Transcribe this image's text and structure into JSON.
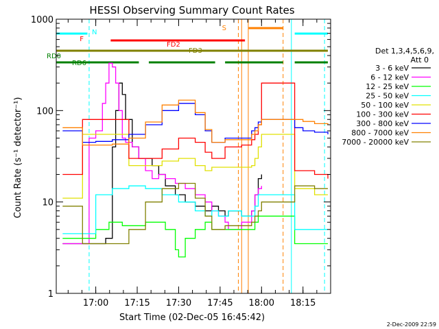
{
  "chart_data": {
    "type": "line",
    "title": "HESSI Observing Summary Count Rates",
    "xlabel": "Start Time (02-Dec-05 16:45:42)",
    "ylabel": "Count Rate (s⁻¹ detector⁻¹)",
    "yscale": "log",
    "ylim": [
      1,
      1000
    ],
    "xlim": [
      "16:45:42",
      "18:25"
    ],
    "x_ticks": [
      "17:00",
      "17:15",
      "17:30",
      "17:45",
      "18:00",
      "18:15"
    ],
    "y_ticks": [
      "1",
      "10",
      "100",
      "1000"
    ],
    "legend_header": [
      "Det 1,3,4,5,6,9,",
      "Att 0"
    ],
    "legend_position": "right",
    "footer": "2-Dec-2009 22:59",
    "series": [
      {
        "name": "3 - 6 keV",
        "color": "#000000",
        "x": [
          16.8,
          16.92,
          17.0,
          17.06,
          17.1,
          17.12,
          17.14,
          17.16,
          17.18,
          17.22,
          17.26,
          17.3,
          17.34,
          17.38,
          17.42,
          17.48,
          17.54,
          17.6,
          17.66,
          17.7,
          17.74,
          17.78,
          17.8,
          17.88,
          17.94,
          17.96,
          17.98,
          18.0
        ],
        "y": [
          3.5,
          3.5,
          3.5,
          4,
          40,
          100,
          200,
          150,
          80,
          40,
          30,
          30,
          25,
          20,
          15,
          12,
          10,
          9,
          8,
          9,
          8,
          7,
          8,
          7,
          8,
          12,
          18,
          20
        ]
      },
      {
        "name": "6 - 12 keV",
        "color": "#ff00ff",
        "x": [
          16.8,
          16.92,
          16.96,
          17.0,
          17.04,
          17.06,
          17.08,
          17.1,
          17.12,
          17.14,
          17.16,
          17.18,
          17.22,
          17.26,
          17.3,
          17.34,
          17.38,
          17.42,
          17.48,
          17.54,
          17.6,
          17.66,
          17.7,
          17.74,
          17.78,
          17.8,
          17.88,
          17.94,
          17.96,
          17.98,
          18.0
        ],
        "y": [
          3.5,
          3.5,
          50,
          60,
          120,
          200,
          330,
          300,
          200,
          100,
          50,
          45,
          40,
          30,
          22,
          18,
          20,
          18,
          16,
          14,
          12,
          10,
          8,
          7,
          6,
          5,
          6,
          8,
          12,
          14,
          15
        ]
      },
      {
        "name": "12 - 25 keV",
        "color": "#00ff00",
        "x": [
          16.8,
          16.92,
          17.0,
          17.08,
          17.12,
          17.16,
          17.22,
          17.3,
          17.36,
          17.42,
          17.48,
          17.5,
          17.54,
          17.6,
          17.66,
          17.7,
          17.74,
          17.78,
          17.8,
          17.88,
          17.94,
          17.96,
          17.98,
          18.0,
          18.2,
          18.25,
          18.32,
          18.4
        ],
        "y": [
          4,
          4,
          5,
          6,
          6,
          5.5,
          5.5,
          6,
          6,
          5,
          3,
          2.5,
          4,
          5,
          6,
          5,
          5,
          5,
          5,
          5,
          5,
          6,
          7,
          7,
          3.5,
          3.5,
          3.5,
          3.5
        ]
      },
      {
        "name": "25 - 50 keV",
        "color": "#00ffff",
        "x": [
          16.8,
          16.92,
          17.0,
          17.1,
          17.2,
          17.3,
          17.4,
          17.5,
          17.6,
          17.66,
          17.7,
          17.74,
          17.78,
          17.8,
          17.88,
          17.94,
          17.96,
          17.98,
          18.0,
          18.2,
          18.25,
          18.32,
          18.4
        ],
        "y": [
          4.5,
          4.5,
          12,
          14,
          15,
          14,
          12,
          10,
          8,
          7,
          8,
          7,
          7,
          8,
          7,
          7,
          9,
          12,
          12,
          5,
          5,
          5,
          5
        ]
      },
      {
        "name": "50 - 100 keV",
        "color": "#e0e000",
        "x": [
          16.8,
          16.92,
          17.0,
          17.1,
          17.2,
          17.3,
          17.4,
          17.5,
          17.6,
          17.66,
          17.7,
          17.78,
          17.8,
          17.88,
          17.94,
          17.96,
          17.98,
          18.0,
          18.2,
          18.25,
          18.32,
          18.4
        ],
        "y": [
          11,
          55,
          55,
          55,
          25,
          25,
          28,
          30,
          25,
          22,
          24,
          24,
          24,
          24,
          25,
          30,
          40,
          55,
          14,
          14,
          12,
          12
        ]
      },
      {
        "name": "100 - 300 keV",
        "color": "#ff0000",
        "x": [
          16.8,
          16.92,
          17.0,
          17.1,
          17.2,
          17.3,
          17.4,
          17.5,
          17.6,
          17.66,
          17.7,
          17.78,
          17.8,
          17.88,
          17.94,
          17.96,
          17.98,
          18.0,
          18.2,
          18.25,
          18.32,
          18.4
        ],
        "y": [
          20,
          80,
          80,
          80,
          30,
          30,
          38,
          50,
          45,
          35,
          30,
          40,
          40,
          42,
          48,
          55,
          70,
          200,
          22,
          22,
          20,
          18
        ]
      },
      {
        "name": "300 - 800 keV",
        "color": "#0000ff",
        "x": [
          16.8,
          16.92,
          17.0,
          17.1,
          17.2,
          17.3,
          17.4,
          17.5,
          17.6,
          17.66,
          17.7,
          17.78,
          17.8,
          17.88,
          17.94,
          17.96,
          17.98,
          18.0,
          18.2,
          18.25,
          18.32,
          18.4
        ],
        "y": [
          60,
          45,
          46,
          48,
          55,
          70,
          100,
          120,
          90,
          60,
          45,
          50,
          50,
          50,
          60,
          65,
          75,
          80,
          65,
          60,
          58,
          55
        ]
      },
      {
        "name": "800 - 7000 keV",
        "color": "#ff8000",
        "x": [
          16.8,
          16.92,
          17.0,
          17.1,
          17.2,
          17.3,
          17.4,
          17.5,
          17.6,
          17.66,
          17.7,
          17.78,
          17.8,
          17.88,
          17.94,
          17.96,
          17.98,
          18.0,
          18.2,
          18.25,
          18.32,
          18.4
        ],
        "y": [
          65,
          42,
          42,
          43,
          50,
          75,
          115,
          130,
          95,
          62,
          45,
          48,
          48,
          48,
          55,
          60,
          70,
          80,
          80,
          76,
          72,
          70
        ]
      },
      {
        "name": "7000 - 20000 keV",
        "color": "#808000",
        "x": [
          16.8,
          16.92,
          17.0,
          17.1,
          17.2,
          17.3,
          17.4,
          17.5,
          17.6,
          17.66,
          17.7,
          17.78,
          17.8,
          17.88,
          17.94,
          17.96,
          17.98,
          18.0,
          18.2,
          18.25,
          18.32,
          18.4
        ],
        "y": [
          9,
          3.5,
          3.5,
          3.5,
          5,
          10,
          14,
          16,
          11,
          7,
          5,
          5.5,
          5.5,
          5.5,
          6,
          7,
          8,
          10,
          15,
          15,
          14,
          14
        ]
      }
    ],
    "flag_bars": [
      {
        "label": "N",
        "color": "#00ffff",
        "segments": [
          [
            16.76,
            16.95
          ],
          [
            18.2,
            18.4
          ]
        ],
        "level": 0
      },
      {
        "label": "F",
        "color": "#ff0000",
        "segments": [
          [
            17.09,
            17.9
          ]
        ],
        "level": 1
      },
      {
        "label": "FD2",
        "color": "#ff0000",
        "segments": [],
        "level": 1
      },
      {
        "label": "S",
        "color": "#ff8000",
        "segments": [
          [
            17.92,
            18.13
          ]
        ],
        "level": -1
      },
      {
        "label": "FD3",
        "color": "#808000",
        "segments": [
          [
            16.76,
            18.4
          ]
        ],
        "level": 2
      },
      {
        "label": "RD0",
        "color": "#008000",
        "segments": [
          [
            16.76,
            17.26
          ],
          [
            17.32,
            17.72
          ],
          [
            17.78,
            18.13
          ],
          [
            18.2,
            18.4
          ]
        ],
        "level": 3
      },
      {
        "label": "RD6",
        "color": "#008000",
        "segments": [],
        "level": 3
      }
    ],
    "vertical_markers": [
      {
        "x": 16.96,
        "color": "#00ffff",
        "style": "dashed"
      },
      {
        "x": 17.86,
        "color": "#ff8000",
        "style": "dashed"
      },
      {
        "x": 17.88,
        "color": "#ff8000",
        "style": "solid"
      },
      {
        "x": 17.92,
        "color": "#ff8000",
        "style": "solid"
      },
      {
        "x": 18.13,
        "color": "#ff8000",
        "style": "dashed"
      },
      {
        "x": 18.18,
        "color": "#00ffff",
        "style": "solid"
      },
      {
        "x": 18.38,
        "color": "#00ffff",
        "style": "dashed"
      }
    ]
  }
}
